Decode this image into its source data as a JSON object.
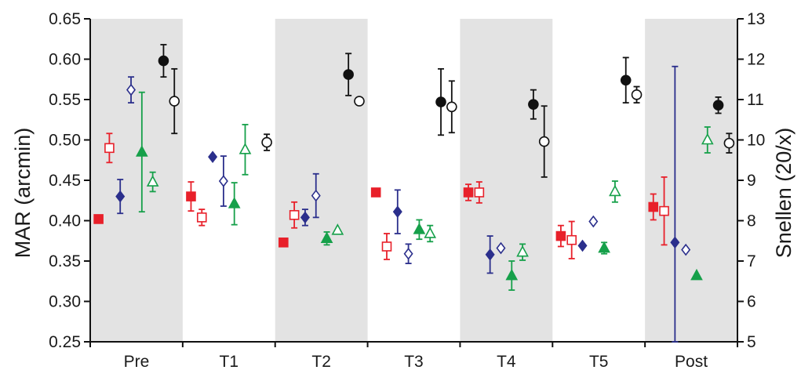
{
  "chart_data": {
    "type": "scatter",
    "title": "",
    "categories": [
      "Pre",
      "T1",
      "T2",
      "T3",
      "T4",
      "T5",
      "Post"
    ],
    "shaded_categories": [
      "Pre",
      "T2",
      "T4",
      "Post"
    ],
    "ylabel": "MAR (arcmin)",
    "ylabel_right": "Snellen (20/x)",
    "ylim": [
      0.25,
      0.65
    ],
    "ylim_right": [
      5,
      13
    ],
    "yticks": [
      "0.25",
      "0.30",
      "0.35",
      "0.40",
      "0.45",
      "0.50",
      "0.55",
      "0.60",
      "0.65"
    ],
    "yticks_right": [
      "5",
      "6",
      "7",
      "8",
      "9",
      "10",
      "11",
      "12",
      "13"
    ],
    "grid": false,
    "series": [
      {
        "marker": "square-filled",
        "color": "#e8202a",
        "points": [
          {
            "x": "Pre",
            "y": 0.402,
            "err": 0
          },
          {
            "x": "T1",
            "y": 0.43,
            "err": 0.018
          },
          {
            "x": "T2",
            "y": 0.373,
            "err": 0
          },
          {
            "x": "T3",
            "y": 0.435,
            "err": 0
          },
          {
            "x": "T4",
            "y": 0.435,
            "err": 0.01
          },
          {
            "x": "T5",
            "y": 0.381,
            "err": 0.013
          },
          {
            "x": "Post",
            "y": 0.417,
            "err": 0.016
          }
        ]
      },
      {
        "marker": "square-open",
        "color": "#e8202a",
        "points": [
          {
            "x": "Pre",
            "y": 0.49,
            "err": 0.018
          },
          {
            "x": "T1",
            "y": 0.404,
            "err": 0.01
          },
          {
            "x": "T2",
            "y": 0.407,
            "err": 0.016
          },
          {
            "x": "T3",
            "y": 0.368,
            "err": 0.016
          },
          {
            "x": "T4",
            "y": 0.435,
            "err": 0.013
          },
          {
            "x": "T5",
            "y": 0.376,
            "err": 0.023
          },
          {
            "x": "Post",
            "y": 0.412,
            "err": 0.042
          }
        ]
      },
      {
        "marker": "diamond-filled",
        "color": "#2b2f8c",
        "points": [
          {
            "x": "Pre",
            "y": 0.43,
            "err": 0.021
          },
          {
            "x": "T1",
            "y": 0.479,
            "err": 0
          },
          {
            "x": "T2",
            "y": 0.404,
            "err": 0.01
          },
          {
            "x": "T3",
            "y": 0.411,
            "err": 0.027
          },
          {
            "x": "T4",
            "y": 0.358,
            "err": 0.023
          },
          {
            "x": "T5",
            "y": 0.369,
            "err": 0
          },
          {
            "x": "Post",
            "y": 0.373,
            "err": 0.218
          }
        ]
      },
      {
        "marker": "diamond-open",
        "color": "#2b2f8c",
        "points": [
          {
            "x": "Pre",
            "y": 0.562,
            "err": 0.016
          },
          {
            "x": "T1",
            "y": 0.449,
            "err": 0.031
          },
          {
            "x": "T2",
            "y": 0.431,
            "err": 0.027
          },
          {
            "x": "T3",
            "y": 0.359,
            "err": 0.012
          },
          {
            "x": "T4",
            "y": 0.366,
            "err": 0
          },
          {
            "x": "T5",
            "y": 0.399,
            "err": 0
          },
          {
            "x": "Post",
            "y": 0.364,
            "err": 0
          }
        ]
      },
      {
        "marker": "triangle-filled",
        "color": "#16a04a",
        "points": [
          {
            "x": "Pre",
            "y": 0.485,
            "err": 0.074
          },
          {
            "x": "T1",
            "y": 0.421,
            "err": 0.026
          },
          {
            "x": "T2",
            "y": 0.378,
            "err": 0.008
          },
          {
            "x": "T3",
            "y": 0.389,
            "err": 0.012
          },
          {
            "x": "T4",
            "y": 0.332,
            "err": 0.018
          },
          {
            "x": "T5",
            "y": 0.366,
            "err": 0.007
          },
          {
            "x": "Post",
            "y": 0.332,
            "err": 0
          }
        ]
      },
      {
        "marker": "triangle-open",
        "color": "#16a04a",
        "points": [
          {
            "x": "Pre",
            "y": 0.448,
            "err": 0.012
          },
          {
            "x": "T1",
            "y": 0.488,
            "err": 0.031
          },
          {
            "x": "T2",
            "y": 0.388,
            "err": 0
          },
          {
            "x": "T3",
            "y": 0.384,
            "err": 0.01
          },
          {
            "x": "T4",
            "y": 0.361,
            "err": 0.01
          },
          {
            "x": "T5",
            "y": 0.436,
            "err": 0.013
          },
          {
            "x": "Post",
            "y": 0.5,
            "err": 0.016
          }
        ]
      },
      {
        "marker": "circle-filled",
        "color": "#111111",
        "points": [
          {
            "x": "Pre",
            "y": 0.598,
            "err": 0.02
          },
          {
            "x": "T1",
            "y": null,
            "err": 0
          },
          {
            "x": "T2",
            "y": 0.581,
            "err": 0.026
          },
          {
            "x": "T3",
            "y": 0.547,
            "err": 0.041
          },
          {
            "x": "T4",
            "y": 0.544,
            "err": 0.018
          },
          {
            "x": "T5",
            "y": 0.574,
            "err": 0.028
          },
          {
            "x": "Post",
            "y": 0.543,
            "err": 0.01
          }
        ]
      },
      {
        "marker": "circle-open",
        "color": "#111111",
        "points": [
          {
            "x": "Pre",
            "y": 0.548,
            "err": 0.04
          },
          {
            "x": "T1",
            "y": 0.497,
            "err": 0.01
          },
          {
            "x": "T2",
            "y": 0.548,
            "err": 0
          },
          {
            "x": "T3",
            "y": 0.541,
            "err": 0.032
          },
          {
            "x": "T4",
            "y": 0.498,
            "err": 0.044
          },
          {
            "x": "T5",
            "y": 0.556,
            "err": 0.01
          },
          {
            "x": "Post",
            "y": 0.496,
            "err": 0.012
          }
        ]
      }
    ]
  }
}
